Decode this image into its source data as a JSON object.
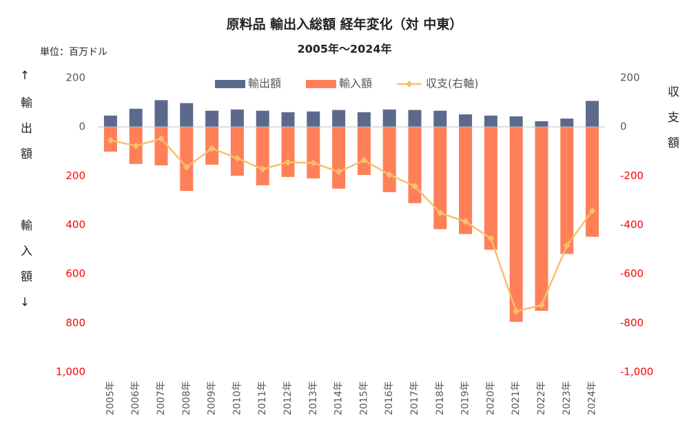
{
  "chart_data": {
    "type": "bar",
    "title": "原料品 輸出入総額 経年変化（対 中東）",
    "subtitle": "2005年～2024年",
    "unit_label": "単位：百万ドル",
    "y_label": "↑輸出額",
    "y_label_2": "輸入額↓",
    "y2_label": "収支額",
    "categories": [
      "2005年",
      "2006年",
      "2007年",
      "2008年",
      "2009年",
      "2010年",
      "2011年",
      "2012年",
      "2013年",
      "2014年",
      "2015年",
      "2016年",
      "2017年",
      "2018年",
      "2019年",
      "2020年",
      "2021年",
      "2022年",
      "2023年",
      "2024年"
    ],
    "series": [
      {
        "name": "輸出額",
        "color": "#5b6a8c",
        "values": [
          46,
          74,
          109,
          97,
          66,
          71,
          66,
          60,
          63,
          69,
          60,
          71,
          69,
          66,
          51,
          46,
          43,
          23,
          34,
          106
        ]
      },
      {
        "name": "輸入額",
        "color": "#ff7f59",
        "values": [
          -101,
          -151,
          -157,
          -261,
          -154,
          -199,
          -238,
          -204,
          -210,
          -252,
          -196,
          -266,
          -311,
          -417,
          -437,
          -501,
          -795,
          -750,
          -518,
          -448
        ]
      },
      {
        "name": "収支(右軸)",
        "color": "#f7c06c",
        "axis": "y2",
        "values": [
          -55,
          -77,
          -48,
          -164,
          -88,
          -128,
          -172,
          -144,
          -147,
          -183,
          -136,
          -195,
          -242,
          -351,
          -386,
          -455,
          -752,
          -727,
          -484,
          -342
        ]
      }
    ],
    "ylim": [
      -1000,
      200
    ],
    "yticks": [
      200,
      0,
      {
        "value": -200,
        "label": "200"
      },
      {
        "value": -400,
        "label": "400"
      },
      {
        "value": -600,
        "label": "600"
      },
      {
        "value": -800,
        "label": "800"
      },
      {
        "value": -1000,
        "label": "1,000"
      }
    ],
    "y2lim": [
      -1000,
      200
    ],
    "y2ticks": [
      200,
      0,
      -200,
      -400,
      -600,
      -800,
      {
        "value": -1000,
        "label": "-1,000"
      }
    ],
    "negative_tick_color": "#ff0000",
    "grid": false,
    "legend": "top"
  }
}
